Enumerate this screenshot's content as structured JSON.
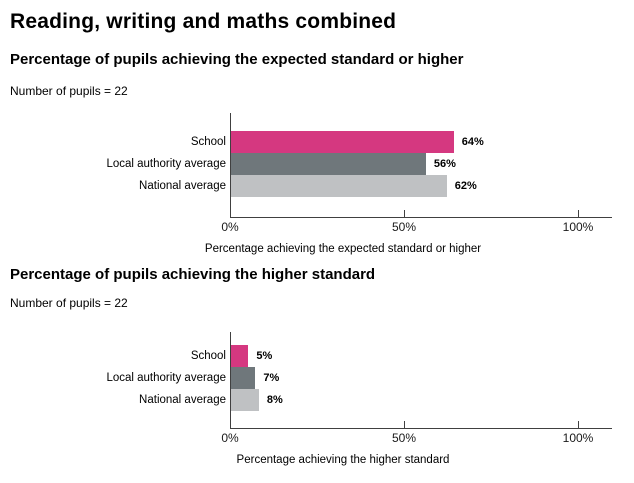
{
  "page": {
    "title": "Reading, writing and maths combined"
  },
  "colors": {
    "school_bar": "#d53880",
    "local_authority_bar": "#6f777b",
    "national_bar": "#bfc1c3",
    "axis": "#404040",
    "text": "#000000",
    "background": "#ffffff"
  },
  "chart_data": [
    {
      "type": "bar",
      "orientation": "horizontal",
      "title": "Percentage of pupils achieving the expected standard or higher",
      "note": "Number of pupils = 22",
      "categories": [
        "School",
        "Local authority average",
        "National average"
      ],
      "values": [
        64,
        56,
        62
      ],
      "value_labels": [
        "64%",
        "56%",
        "62%"
      ],
      "bar_colors": [
        "#d53880",
        "#6f777b",
        "#bfc1c3"
      ],
      "xlabel": "Percentage achieving the expected standard or higher",
      "xlim": [
        0,
        100
      ],
      "xtick_values": [
        0,
        50,
        100
      ],
      "xtick_labels": [
        "0%",
        "50%",
        "100%"
      ],
      "grid": false,
      "legend": "none"
    },
    {
      "type": "bar",
      "orientation": "horizontal",
      "title": "Percentage of pupils achieving the higher standard",
      "note": "Number of pupils = 22",
      "categories": [
        "School",
        "Local authority average",
        "National average"
      ],
      "values": [
        5,
        7,
        8
      ],
      "value_labels": [
        "5%",
        "7%",
        "8%"
      ],
      "bar_colors": [
        "#d53880",
        "#6f777b",
        "#bfc1c3"
      ],
      "xlabel": "Percentage achieving the higher standard",
      "xlim": [
        0,
        100
      ],
      "xtick_values": [
        0,
        50,
        100
      ],
      "xtick_labels": [
        "0%",
        "50%",
        "100%"
      ],
      "grid": false,
      "legend": "none"
    }
  ]
}
